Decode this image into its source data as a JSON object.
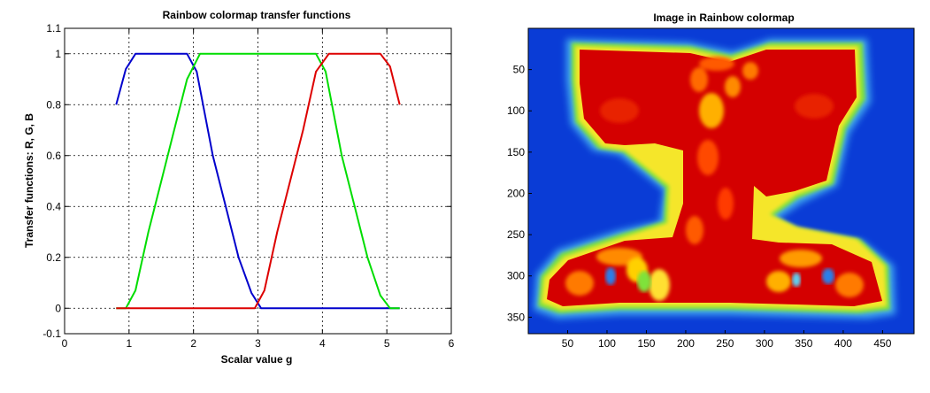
{
  "chart_data": [
    {
      "type": "line",
      "title": "Rainbow colormap transfer functions",
      "xlabel": "Scalar value g",
      "ylabel": "Transfer functions: R, G, B",
      "xlim": [
        0,
        6
      ],
      "ylim": [
        -0.1,
        1.1
      ],
      "xticks": [
        "0",
        "1",
        "2",
        "3",
        "4",
        "5",
        "6"
      ],
      "yticks": [
        "-0.1",
        "0",
        "0.2",
        "0.4",
        "0.6",
        "0.8",
        "1",
        "1.1"
      ],
      "grid": true,
      "series": [
        {
          "color": "#0000cc",
          "x": [
            0.8,
            0.95,
            1.1,
            1.3,
            1.5,
            1.7,
            1.9,
            2.05,
            2.3,
            2.5,
            2.7,
            2.9,
            3.05,
            3.5,
            4.0,
            4.5,
            5.0,
            5.2
          ],
          "y": [
            0.8,
            0.94,
            1.0,
            1.0,
            1.0,
            1.0,
            1.0,
            0.93,
            0.6,
            0.4,
            0.2,
            0.06,
            0.0,
            0.0,
            0.0,
            0.0,
            0.0,
            0.0
          ]
        },
        {
          "color": "#00dd00",
          "x": [
            0.8,
            0.95,
            1.1,
            1.3,
            1.5,
            1.7,
            1.9,
            2.1,
            2.5,
            3.0,
            3.5,
            3.9,
            4.05,
            4.3,
            4.5,
            4.7,
            4.9,
            5.05,
            5.2
          ],
          "y": [
            0.0,
            0.0,
            0.07,
            0.3,
            0.5,
            0.7,
            0.9,
            1.0,
            1.0,
            1.0,
            1.0,
            1.0,
            0.93,
            0.6,
            0.4,
            0.2,
            0.05,
            0.0,
            0.0
          ]
        },
        {
          "color": "#dd0000",
          "x": [
            0.8,
            1.5,
            2.0,
            2.5,
            2.95,
            3.1,
            3.3,
            3.5,
            3.7,
            3.9,
            4.1,
            4.5,
            4.9,
            5.05,
            5.2
          ],
          "y": [
            0.0,
            0.0,
            0.0,
            0.0,
            0.0,
            0.07,
            0.3,
            0.5,
            0.7,
            0.93,
            1.0,
            1.0,
            1.0,
            0.95,
            0.8
          ]
        }
      ]
    },
    {
      "type": "heatmap",
      "title": "Image in Rainbow colormap",
      "colormap": "rainbow",
      "xlim": [
        0,
        490
      ],
      "ylim": [
        370,
        0
      ],
      "xticks": [
        "50",
        "100",
        "150",
        "200",
        "250",
        "300",
        "350",
        "400",
        "450"
      ],
      "yticks": [
        "50",
        "100",
        "150",
        "200",
        "250",
        "300",
        "350"
      ]
    }
  ]
}
